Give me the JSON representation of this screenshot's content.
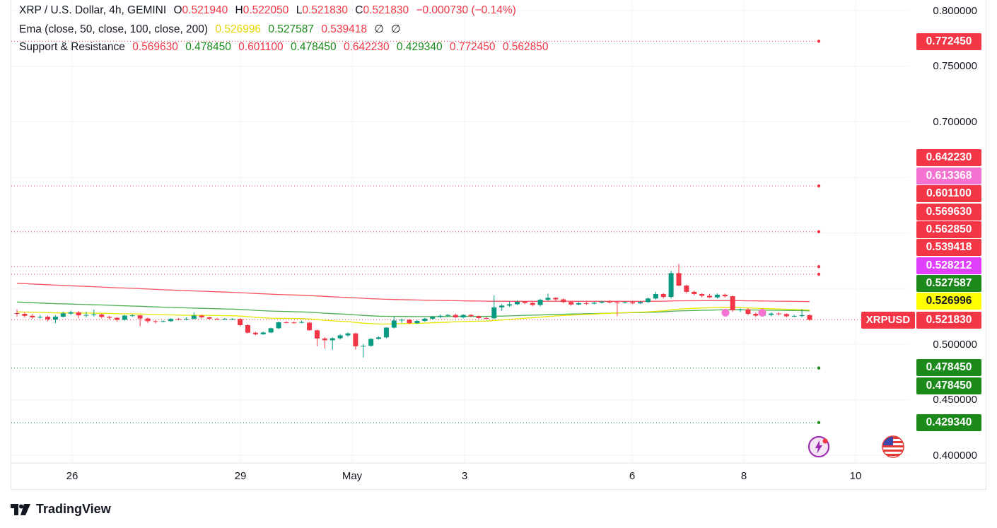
{
  "legend": {
    "line1": {
      "title": "XRP / U.S. Dollar, 4h, GEMINI",
      "o_label": "O",
      "o_value": "0.521940",
      "h_label": "H",
      "h_value": "0.522050",
      "l_label": "L",
      "l_value": "0.521830",
      "c_label": "C",
      "c_value": "0.521830",
      "change": "−0.000730 (−0.14%)"
    },
    "line2": {
      "title": "Ema (close, 50, close, 100, close, 200)",
      "v1": "0.526996",
      "v2": "0.527587",
      "v3": "0.539418",
      "v4": "∅",
      "v5": "∅"
    },
    "line3": {
      "title": "Support & Resistance",
      "values": [
        "0.569630",
        "0.478450",
        "0.601100",
        "0.478450",
        "0.642230",
        "0.429340",
        "0.772450",
        "0.562850"
      ]
    }
  },
  "price_axis": {
    "ticks": [
      "0.800000",
      "0.750000",
      "0.700000",
      "0.500000",
      "0.450000",
      "0.400000"
    ]
  },
  "time_axis": {
    "labels": [
      "26",
      "29",
      "May",
      "3",
      "6",
      "8",
      "10"
    ]
  },
  "price_tags": [
    {
      "value": "0.772450",
      "color": "#f23645"
    },
    {
      "value": "0.642230",
      "color": "#f23645"
    },
    {
      "value": "0.613368",
      "color": "#f472d0"
    },
    {
      "value": "0.601100",
      "color": "#f23645"
    },
    {
      "value": "0.569630",
      "color": "#f23645"
    },
    {
      "value": "0.562850",
      "color": "#f23645"
    },
    {
      "value": "0.539418",
      "color": "#f23645"
    },
    {
      "value": "0.528212",
      "color": "#e040fb"
    },
    {
      "value": "0.527587",
      "color": "#1b8a1b"
    },
    {
      "value": "0.526996",
      "color": "#ffff00"
    },
    {
      "value": "0.521830",
      "color": "#f23645"
    },
    {
      "value": "0.478450",
      "color": "#1b8a1b"
    },
    {
      "value": "0.478450",
      "color": "#1b8a1b"
    },
    {
      "value": "0.429340",
      "color": "#1b8a1b"
    }
  ],
  "symbol_tag": "XRPUSD",
  "branding": "TradingView",
  "colors": {
    "up": "#089981",
    "down": "#f23645",
    "ema50": "#e6e600",
    "ema100": "#4caf50",
    "ema200": "#f7525f"
  },
  "chart_data": {
    "type": "candlestick",
    "symbol": "XRP / U.S. Dollar",
    "interval": "4h",
    "exchange": "GEMINI",
    "ylim": [
      0.39,
      0.81
    ],
    "support_resistance": [
      0.77245,
      0.64223,
      0.6011,
      0.56963,
      0.56285,
      0.47845,
      0.42934
    ],
    "ema": {
      "ema50": 0.526996,
      "ema100": 0.527587,
      "ema200": 0.539418
    },
    "last_close": 0.52183,
    "candles": [
      [
        0.5278,
        0.5274,
        0.5312,
        0.5248
      ],
      [
        0.5272,
        0.5254,
        0.5286,
        0.5238
      ],
      [
        0.5254,
        0.524,
        0.527,
        0.5228
      ],
      [
        0.5238,
        0.5244,
        0.5262,
        0.5228
      ],
      [
        0.5246,
        0.5222,
        0.5256,
        0.5204
      ],
      [
        0.522,
        0.5246,
        0.526,
        0.5188
      ],
      [
        0.5246,
        0.5276,
        0.529,
        0.524
      ],
      [
        0.5274,
        0.5286,
        0.53,
        0.5262
      ],
      [
        0.5284,
        0.5258,
        0.5298,
        0.5232
      ],
      [
        0.5258,
        0.5262,
        0.529,
        0.524
      ],
      [
        0.5262,
        0.5268,
        0.531,
        0.5248
      ],
      [
        0.5266,
        0.5244,
        0.5272,
        0.5232
      ],
      [
        0.5244,
        0.5236,
        0.5254,
        0.5222
      ],
      [
        0.5236,
        0.5218,
        0.5244,
        0.52
      ],
      [
        0.5218,
        0.5256,
        0.5262,
        0.521
      ],
      [
        0.5256,
        0.5258,
        0.527,
        0.5244
      ],
      [
        0.5258,
        0.523,
        0.5262,
        0.516
      ],
      [
        0.523,
        0.5206,
        0.5238,
        0.519
      ],
      [
        0.5206,
        0.52,
        0.5214,
        0.5186
      ],
      [
        0.52,
        0.5206,
        0.5214,
        0.5194
      ],
      [
        0.5206,
        0.5226,
        0.5232,
        0.52
      ],
      [
        0.5226,
        0.5222,
        0.5236,
        0.5214
      ],
      [
        0.5222,
        0.5228,
        0.524,
        0.5216
      ],
      [
        0.5228,
        0.5256,
        0.5286,
        0.522
      ],
      [
        0.5256,
        0.524,
        0.5264,
        0.5228
      ],
      [
        0.524,
        0.5228,
        0.5246,
        0.522
      ],
      [
        0.5228,
        0.5224,
        0.5234,
        0.5218
      ],
      [
        0.5224,
        0.5228,
        0.5234,
        0.5218
      ],
      [
        0.5224,
        0.5226,
        0.5232,
        0.5216
      ],
      [
        0.5226,
        0.517,
        0.5232,
        0.516
      ],
      [
        0.517,
        0.5102,
        0.5178,
        0.5096
      ],
      [
        0.5102,
        0.5088,
        0.511,
        0.508
      ],
      [
        0.5088,
        0.5104,
        0.5112,
        0.5082
      ],
      [
        0.5104,
        0.5142,
        0.5148,
        0.5098
      ],
      [
        0.5142,
        0.5196,
        0.5202,
        0.5134
      ],
      [
        0.5196,
        0.5194,
        0.5206,
        0.5186
      ],
      [
        0.5194,
        0.5192,
        0.5204,
        0.5184
      ],
      [
        0.5192,
        0.5198,
        0.521,
        0.5186
      ],
      [
        0.5192,
        0.5124,
        0.5198,
        0.512
      ],
      [
        0.5124,
        0.505,
        0.513,
        0.498
      ],
      [
        0.505,
        0.5034,
        0.5062,
        0.496
      ],
      [
        0.5034,
        0.5052,
        0.5062,
        0.495
      ],
      [
        0.5052,
        0.5078,
        0.509,
        0.504
      ],
      [
        0.5078,
        0.5096,
        0.5104,
        0.5066
      ],
      [
        0.5096,
        0.498,
        0.5102,
        0.495
      ],
      [
        0.498,
        0.4984,
        0.5,
        0.488
      ],
      [
        0.4984,
        0.5046,
        0.5052,
        0.4976
      ],
      [
        0.5046,
        0.506,
        0.507,
        0.504
      ],
      [
        0.506,
        0.5148,
        0.5152,
        0.5052
      ],
      [
        0.5148,
        0.5212,
        0.525,
        0.514
      ],
      [
        0.5212,
        0.5218,
        0.523,
        0.519
      ],
      [
        0.5218,
        0.5188,
        0.5226,
        0.518
      ],
      [
        0.5188,
        0.5208,
        0.5216,
        0.518
      ],
      [
        0.5208,
        0.5228,
        0.5236,
        0.52
      ],
      [
        0.5228,
        0.5244,
        0.5252,
        0.522
      ],
      [
        0.5244,
        0.5254,
        0.5266,
        0.5234
      ],
      [
        0.5254,
        0.5262,
        0.527,
        0.5244
      ],
      [
        0.5262,
        0.524,
        0.5274,
        0.5232
      ],
      [
        0.524,
        0.5262,
        0.5268,
        0.5232
      ],
      [
        0.5262,
        0.525,
        0.527,
        0.5242
      ],
      [
        0.525,
        0.5234,
        0.5258,
        0.5228
      ],
      [
        0.5234,
        0.5232,
        0.5244,
        0.5226
      ],
      [
        0.5232,
        0.533,
        0.5438,
        0.5224
      ],
      [
        0.533,
        0.5346,
        0.536,
        0.53
      ],
      [
        0.5346,
        0.5358,
        0.5384,
        0.5334
      ],
      [
        0.5358,
        0.538,
        0.5394,
        0.535
      ],
      [
        0.538,
        0.537,
        0.5386,
        0.5358
      ],
      [
        0.537,
        0.5352,
        0.5378,
        0.534
      ],
      [
        0.5352,
        0.5398,
        0.5406,
        0.534
      ],
      [
        0.5398,
        0.5416,
        0.5454,
        0.539
      ],
      [
        0.5416,
        0.5402,
        0.5422,
        0.539
      ],
      [
        0.5402,
        0.5378,
        0.541,
        0.5366
      ],
      [
        0.5378,
        0.5356,
        0.5386,
        0.5344
      ],
      [
        0.5356,
        0.5368,
        0.5378,
        0.535
      ],
      [
        0.5368,
        0.5364,
        0.538,
        0.5352
      ],
      [
        0.5364,
        0.5372,
        0.538,
        0.5356
      ],
      [
        0.5372,
        0.5382,
        0.539,
        0.5364
      ],
      [
        0.5382,
        0.5374,
        0.5394,
        0.5366
      ],
      [
        0.5374,
        0.5372,
        0.5384,
        0.525
      ],
      [
        0.5372,
        0.5376,
        0.5384,
        0.5364
      ],
      [
        0.5376,
        0.5366,
        0.5384,
        0.5358
      ],
      [
        0.5366,
        0.5378,
        0.5386,
        0.536
      ],
      [
        0.5378,
        0.541,
        0.5418,
        0.537
      ],
      [
        0.541,
        0.545,
        0.547,
        0.54
      ],
      [
        0.545,
        0.5424,
        0.546,
        0.541
      ],
      [
        0.5424,
        0.5638,
        0.566,
        0.541
      ],
      [
        0.5638,
        0.5526,
        0.572,
        0.552
      ],
      [
        0.5526,
        0.547,
        0.5534,
        0.5454
      ],
      [
        0.547,
        0.545,
        0.548,
        0.5436
      ],
      [
        0.545,
        0.5434,
        0.5458,
        0.542
      ],
      [
        0.5434,
        0.542,
        0.5452,
        0.5414
      ],
      [
        0.542,
        0.5444,
        0.5456,
        0.5408
      ],
      [
        0.5444,
        0.543,
        0.5454,
        0.5418
      ],
      [
        0.543,
        0.5304,
        0.5436,
        0.529
      ],
      [
        0.5304,
        0.5312,
        0.532,
        0.529
      ],
      [
        0.5312,
        0.5272,
        0.532,
        0.5262
      ],
      [
        0.5272,
        0.5256,
        0.5284,
        0.5242
      ],
      [
        0.5256,
        0.5262,
        0.5272,
        0.5248
      ],
      [
        0.5262,
        0.5274,
        0.5286,
        0.525
      ],
      [
        0.5274,
        0.527,
        0.5286,
        0.5258
      ],
      [
        0.527,
        0.525,
        0.5276,
        0.524
      ],
      [
        0.525,
        0.5252,
        0.5264,
        0.5244
      ],
      [
        0.5252,
        0.526,
        0.5314,
        0.524
      ],
      [
        0.526,
        0.5218,
        0.5268,
        0.521
      ]
    ]
  }
}
